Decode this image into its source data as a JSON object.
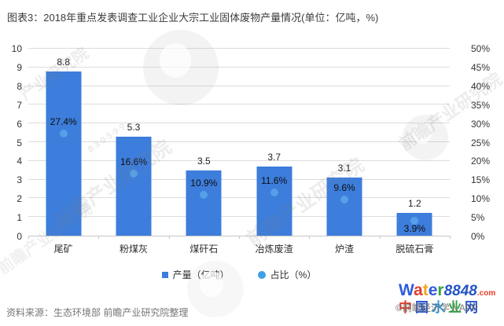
{
  "title": "图表3：2018年重点发表调查工业企业大宗工业固体废物产量情况(单位：亿吨，%)",
  "source": "资料来源：生态环境部 前瞻产业研究院整理",
  "chart_data": {
    "type": "bar",
    "title": "2018年重点发表调查工业企业大宗工业固体废物产量情况",
    "unit": "亿吨，%",
    "categories": [
      "尾矿",
      "粉煤灰",
      "煤矸石",
      "冶炼废渣",
      "炉渣",
      "脱硫石膏"
    ],
    "series": [
      {
        "name": "产量（亿吨）",
        "type": "bar",
        "axis": "left",
        "values": [
          8.8,
          5.3,
          3.5,
          3.7,
          3.1,
          1.2
        ],
        "labels": [
          "8.8",
          "5.3",
          "3.5",
          "3.7",
          "3.1",
          "1.2"
        ]
      },
      {
        "name": "占比（%）",
        "type": "scatter",
        "axis": "right",
        "values": [
          27.4,
          16.6,
          10.9,
          11.6,
          9.6,
          3.9
        ],
        "labels": [
          "27.4%",
          "16.6%",
          "10.9%",
          "11.6%",
          "9.6%",
          "3.9%"
        ]
      }
    ],
    "left_axis": {
      "min": 0,
      "max": 10,
      "step": 1,
      "ticks": [
        "0",
        "1",
        "2",
        "3",
        "4",
        "5",
        "6",
        "7",
        "8",
        "9",
        "10"
      ]
    },
    "right_axis": {
      "min": 0,
      "max": 50,
      "step": 5,
      "ticks": [
        "0%",
        "5%",
        "10%",
        "15%",
        "20%",
        "25%",
        "30%",
        "35%",
        "40%",
        "45%",
        "50%"
      ]
    },
    "grid": true,
    "legend_position": "bottom-center"
  },
  "legend": [
    {
      "marker": "square",
      "label": "产量（亿吨）",
      "color": "#3D7DDB"
    },
    {
      "marker": "circle",
      "label": "占比（%）",
      "color": "#3FA0E8"
    }
  ],
  "colors": {
    "bar": "#3D7DDB",
    "dot": "#55A0E8",
    "grid": "#DCDCDC",
    "axis": "#C6C6C6",
    "title": "#3C3C3C",
    "source": "#757575"
  },
  "watermarks": {
    "diagonal_text": "前瞻产业研究院",
    "diagonal_text_short": "产业研究院",
    "digits": "8·3·9·5·9·9",
    "copyright": "©前瞻经济学人APP"
  },
  "brand": {
    "line1": [
      {
        "ch": "W",
        "color": "#2E5BDA"
      },
      {
        "ch": "a",
        "color": "#E43E2B"
      },
      {
        "ch": "t",
        "color": "#F6A51F"
      },
      {
        "ch": "e",
        "color": "#2E5BDA"
      },
      {
        "ch": "r",
        "color": "#37A345"
      }
    ],
    "suffix": {
      "ch": "8848",
      "color": "#2454C7"
    },
    "dotcom": {
      "ch": ".com",
      "color": "#E43E2B"
    },
    "line2": [
      {
        "ch": "中",
        "color": "#E43E2B"
      },
      {
        "ch": "国",
        "color": "#2454C7"
      },
      {
        "ch": "水",
        "color": "#2E9BE0"
      },
      {
        "ch": "业",
        "color": "#37A345"
      },
      {
        "ch": "网",
        "color": "#2454C7"
      }
    ]
  }
}
